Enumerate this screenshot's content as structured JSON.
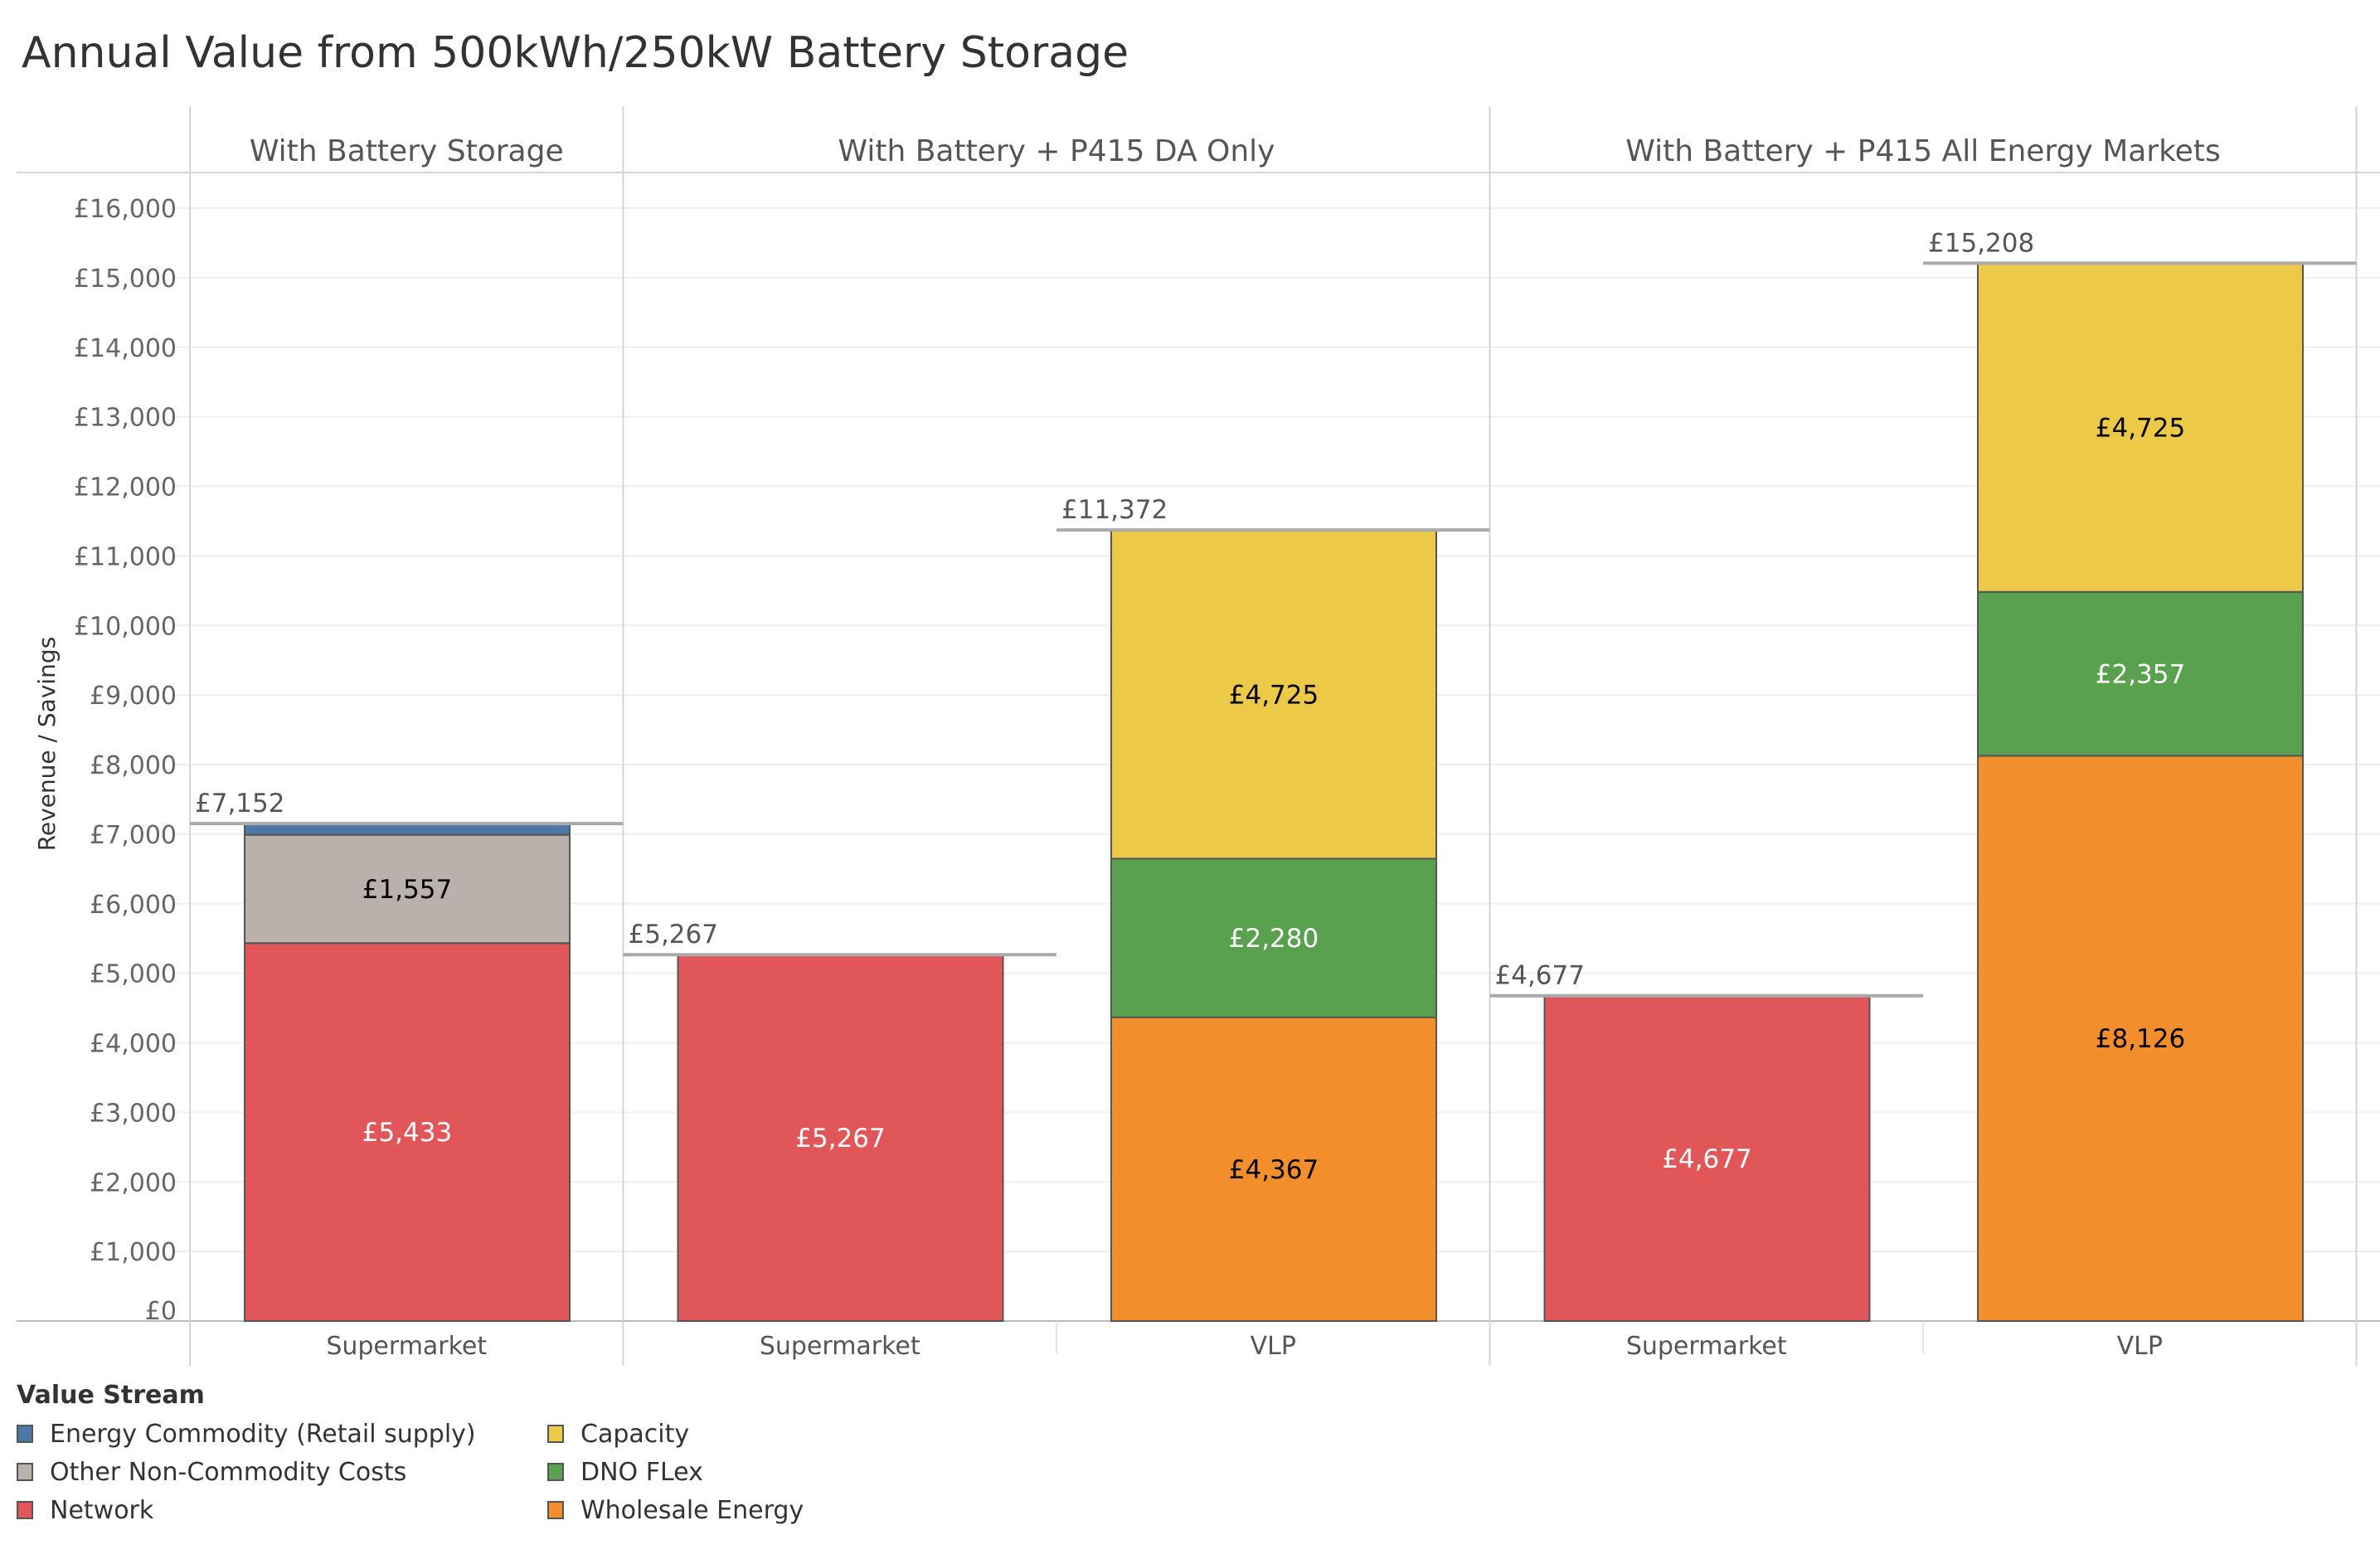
{
  "chart_data": {
    "type": "bar",
    "stacked": true,
    "title": "Annual Value from 500kWh/250kW Battery Storage",
    "ylabel": "Revenue / Savings",
    "xlabel": "",
    "ylim": [
      0,
      16500
    ],
    "yticks": [
      0,
      1000,
      2000,
      3000,
      4000,
      5000,
      6000,
      7000,
      8000,
      9000,
      10000,
      11000,
      12000,
      13000,
      14000,
      15000,
      16000
    ],
    "ytick_labels": [
      "£0",
      "£1,000",
      "£2,000",
      "£3,000",
      "£4,000",
      "£5,000",
      "£6,000",
      "£7,000",
      "£8,000",
      "£9,000",
      "£10,000",
      "£11,000",
      "£12,000",
      "£13,000",
      "£14,000",
      "£15,000",
      "£16,000"
    ],
    "grid": true,
    "legend_title": "Value Stream",
    "legend_placement": "bottom-left",
    "streams": [
      {
        "name": "Energy Commodity (Retail supply)",
        "color": "#4e79a7"
      },
      {
        "name": "Other Non-Commodity Costs",
        "color": "#bab0ac"
      },
      {
        "name": "Network",
        "color": "#e15759"
      },
      {
        "name": "Capacity",
        "color": "#edc948"
      },
      {
        "name": "DNO FLex",
        "color": "#59a14f"
      },
      {
        "name": "Wholesale Energy",
        "color": "#f28e2b"
      }
    ],
    "panels": [
      {
        "title": "With Battery Storage",
        "bars": [
          {
            "category": "Supermarket",
            "total": 7152,
            "total_label": "£7,152",
            "segments": [
              {
                "stream": "Network",
                "value": 5433,
                "label": "£5,433",
                "label_color": "#ffffff"
              },
              {
                "stream": "Other Non-Commodity Costs",
                "value": 1557,
                "label": "£1,557",
                "label_color": "#000000"
              },
              {
                "stream": "Energy Commodity (Retail supply)",
                "value": 162,
                "label": ""
              }
            ]
          }
        ]
      },
      {
        "title": "With Battery + P415 DA Only",
        "bars": [
          {
            "category": "Supermarket",
            "total": 5267,
            "total_label": "£5,267",
            "segments": [
              {
                "stream": "Network",
                "value": 5267,
                "label": "£5,267",
                "label_color": "#ffffff"
              }
            ]
          },
          {
            "category": "VLP",
            "total": 11372,
            "total_label": "£11,372",
            "segments": [
              {
                "stream": "Wholesale Energy",
                "value": 4367,
                "label": "£4,367",
                "label_color": "#000000"
              },
              {
                "stream": "DNO FLex",
                "value": 2280,
                "label": "£2,280",
                "label_color": "#ffffff"
              },
              {
                "stream": "Capacity",
                "value": 4725,
                "label": "£4,725",
                "label_color": "#000000"
              }
            ]
          }
        ]
      },
      {
        "title": "With Battery + P415 All Energy Markets",
        "bars": [
          {
            "category": "Supermarket",
            "total": 4677,
            "total_label": "£4,677",
            "segments": [
              {
                "stream": "Network",
                "value": 4677,
                "label": "£4,677",
                "label_color": "#ffffff"
              }
            ]
          },
          {
            "category": "VLP",
            "total": 15208,
            "total_label": "£15,208",
            "segments": [
              {
                "stream": "Wholesale Energy",
                "value": 8126,
                "label": "£8,126",
                "label_color": "#000000"
              },
              {
                "stream": "DNO FLex",
                "value": 2357,
                "label": "£2,357",
                "label_color": "#ffffff"
              },
              {
                "stream": "Capacity",
                "value": 4725,
                "label": "£4,725",
                "label_color": "#000000"
              }
            ]
          }
        ]
      }
    ]
  }
}
